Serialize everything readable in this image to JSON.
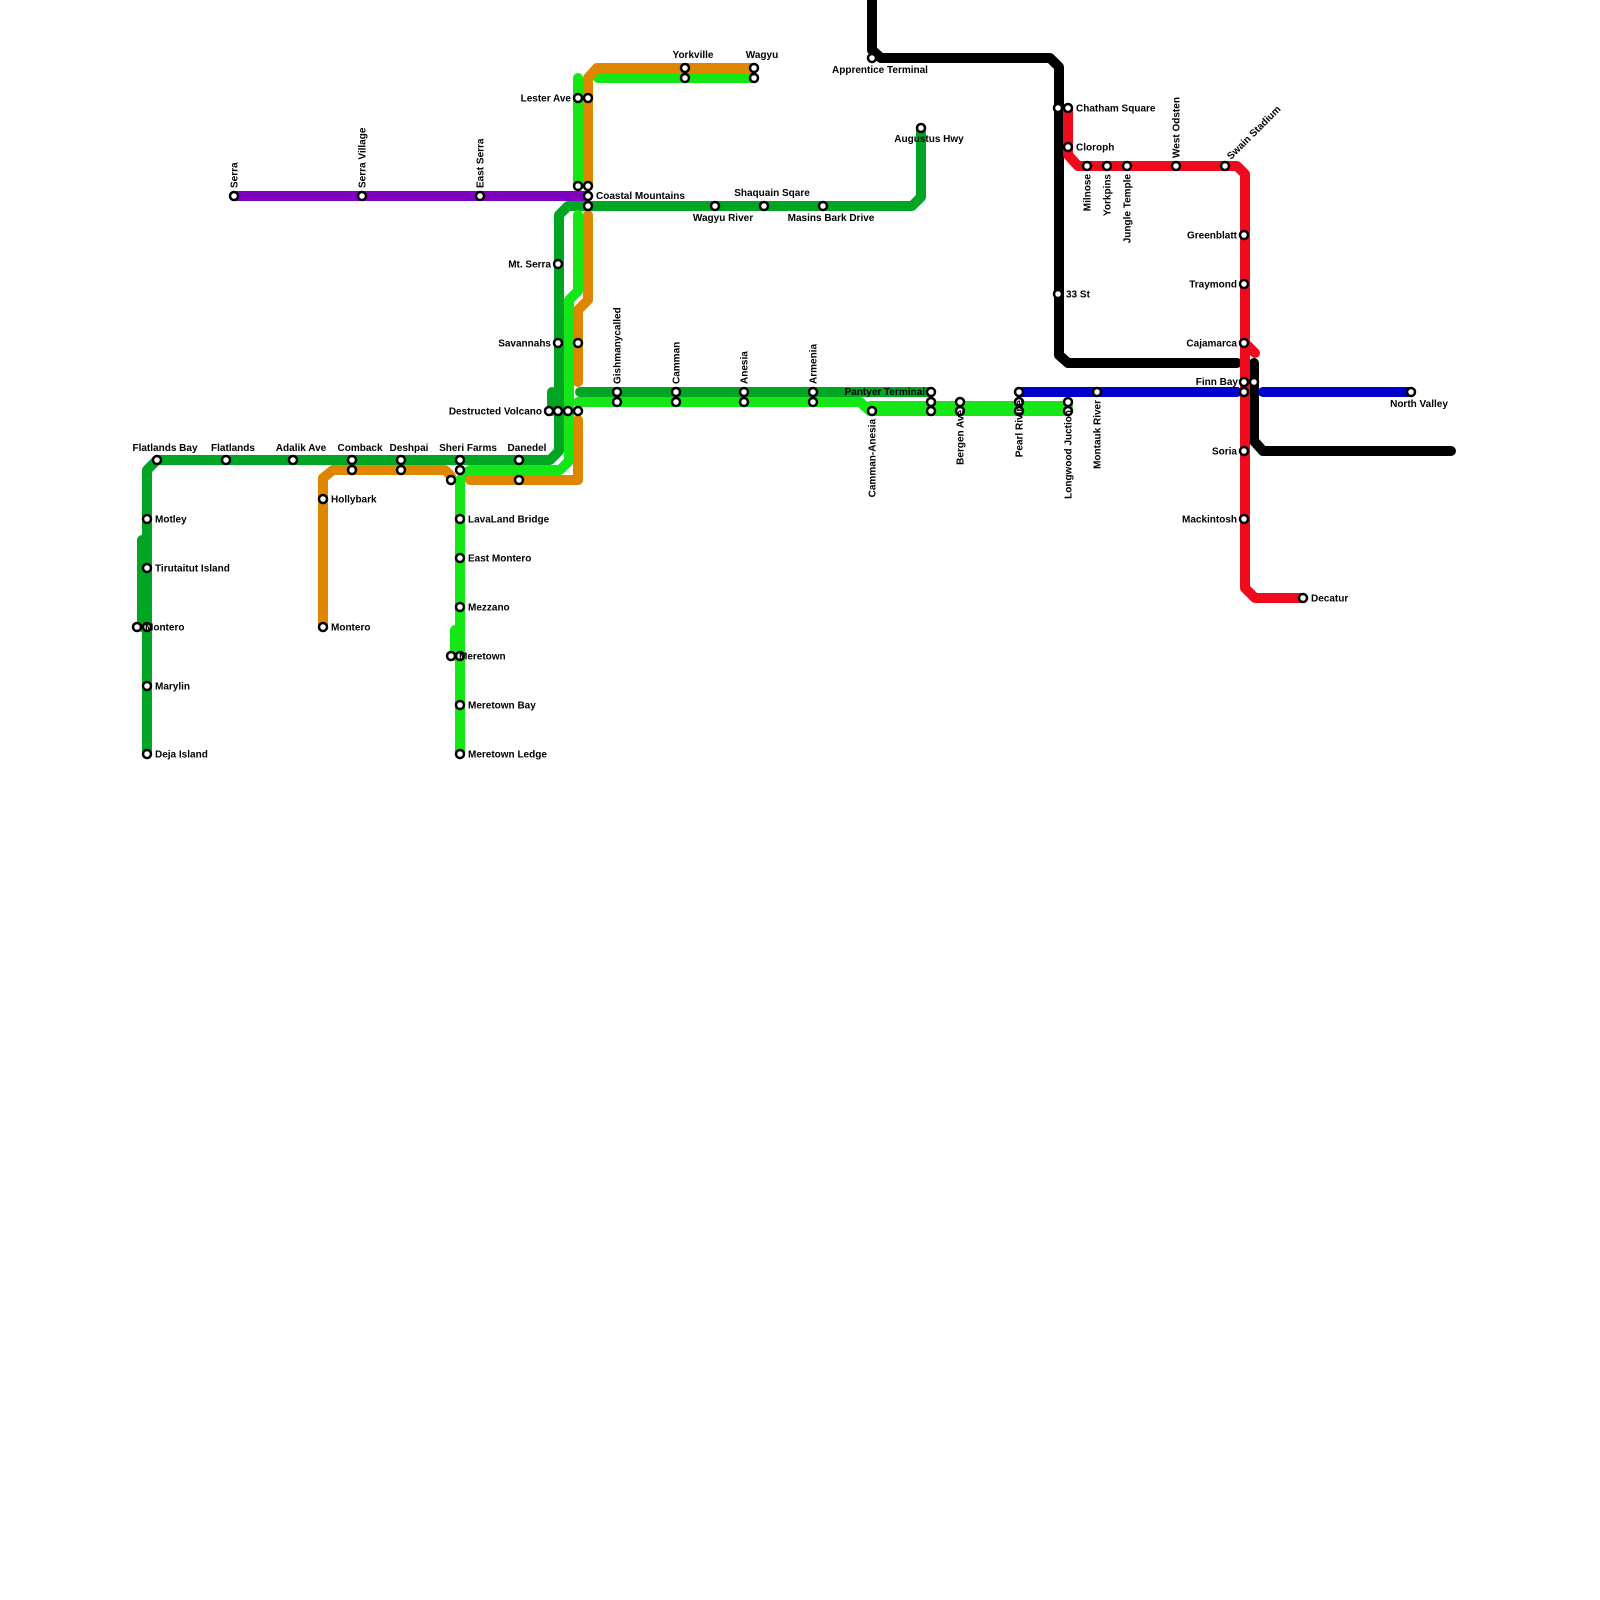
{
  "lines": [
    {
      "id": "purple",
      "color": "#7F00BF"
    },
    {
      "id": "dark-green",
      "color": "#00A524"
    },
    {
      "id": "light-green",
      "color": "#15E615"
    },
    {
      "id": "orange",
      "color": "#DF8600"
    },
    {
      "id": "black",
      "color": "#000000"
    },
    {
      "id": "red",
      "color": "#F00A1E"
    },
    {
      "id": "blue",
      "color": "#0000CC"
    }
  ],
  "stations": [
    {
      "name": "Serra"
    },
    {
      "name": "Serra Village"
    },
    {
      "name": "East Serra"
    },
    {
      "name": "Flatlands Bay"
    },
    {
      "name": "Flatlands"
    },
    {
      "name": "Adalik Ave"
    },
    {
      "name": "Comback"
    },
    {
      "name": "Deshpai"
    },
    {
      "name": "Sheri Farms"
    },
    {
      "name": "Danedel"
    },
    {
      "name": "Motley"
    },
    {
      "name": "Tirutaitut Island"
    },
    {
      "name": "Montero"
    },
    {
      "name": "Marylin"
    },
    {
      "name": "Deja Island"
    },
    {
      "name": "Hollybark"
    },
    {
      "name": "Montero"
    },
    {
      "name": ""
    },
    {
      "name": "LavaLand Bridge"
    },
    {
      "name": "East Montero"
    },
    {
      "name": "Mezzano"
    },
    {
      "name": "Meretown"
    },
    {
      "name": "Meretown Bay"
    },
    {
      "name": "Meretown Ledge"
    },
    {
      "name": "Mt. Serra"
    },
    {
      "name": "Savannahs"
    },
    {
      "name": "Destructed Volcano"
    },
    {
      "name": "Lester Ave"
    },
    {
      "name": "Coastal Mountains"
    },
    {
      "name": "Yorkville"
    },
    {
      "name": "Wagyu"
    },
    {
      "name": "Wagyu River"
    },
    {
      "name": "Shaquain Sqare"
    },
    {
      "name": "Masins Bark Drive"
    },
    {
      "name": "Augustus Hwy"
    },
    {
      "name": "Gishmanycalled"
    },
    {
      "name": "Camman"
    },
    {
      "name": "Anesia"
    },
    {
      "name": "Armenia"
    },
    {
      "name": "Pantyer Terminal"
    },
    {
      "name": "Camman-Anesia"
    },
    {
      "name": "Bergen Ave"
    },
    {
      "name": "Pearl Rivine"
    },
    {
      "name": "Longwood Juction"
    },
    {
      "name": "Montauk River"
    },
    {
      "name": "Apprentice Terminal"
    },
    {
      "name": ""
    },
    {
      "name": "Chatham Square"
    },
    {
      "name": "Cloroph"
    },
    {
      "name": "33 St"
    },
    {
      "name": "Milnose"
    },
    {
      "name": "Yorkpins"
    },
    {
      "name": "Jungle Temple"
    },
    {
      "name": "West Odsten"
    },
    {
      "name": "Swain Stadium"
    },
    {
      "name": "Greenblatt"
    },
    {
      "name": "Traymond"
    },
    {
      "name": "Cajamarca"
    },
    {
      "name": "Finn Bay"
    },
    {
      "name": "Soria"
    },
    {
      "name": "Mackintosh"
    },
    {
      "name": "Decatur"
    },
    {
      "name": "North Valley"
    }
  ]
}
